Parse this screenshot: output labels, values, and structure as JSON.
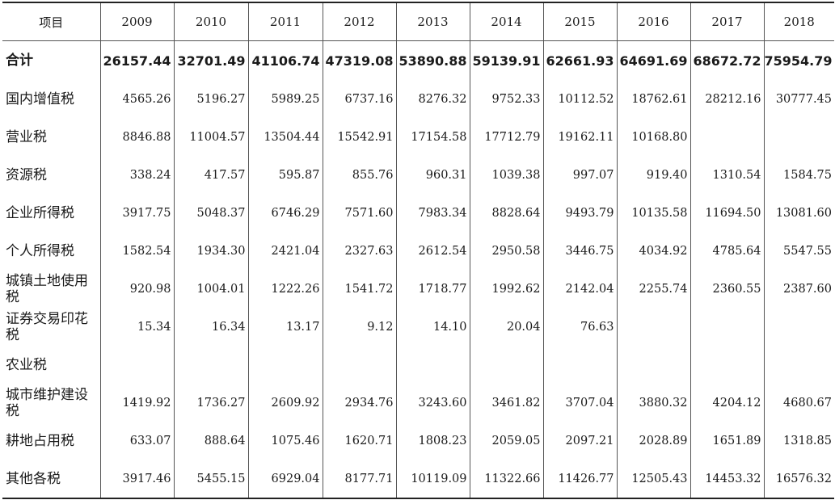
{
  "table": {
    "header": {
      "label": "项目",
      "years": [
        "2009",
        "2010",
        "2011",
        "2012",
        "2013",
        "2014",
        "2015",
        "2016",
        "2017",
        "2018"
      ]
    },
    "rows": [
      {
        "label": "合计",
        "values": [
          "26157.44",
          "32701.49",
          "41106.74",
          "47319.08",
          "53890.88",
          "59139.91",
          "62661.93",
          "64691.69",
          "68672.72",
          "75954.79"
        ]
      },
      {
        "label": "国内增值税",
        "values": [
          "4565.26",
          "5196.27",
          "5989.25",
          "6737.16",
          "8276.32",
          "9752.33",
          "10112.52",
          "18762.61",
          "28212.16",
          "30777.45"
        ]
      },
      {
        "label": "营业税",
        "values": [
          "8846.88",
          "11004.57",
          "13504.44",
          "15542.91",
          "17154.58",
          "17712.79",
          "19162.11",
          "10168.80",
          "",
          ""
        ]
      },
      {
        "label": "资源税",
        "values": [
          "338.24",
          "417.57",
          "595.87",
          "855.76",
          "960.31",
          "1039.38",
          "997.07",
          "919.40",
          "1310.54",
          "1584.75"
        ]
      },
      {
        "label": "企业所得税",
        "values": [
          "3917.75",
          "5048.37",
          "6746.29",
          "7571.60",
          "7983.34",
          "8828.64",
          "9493.79",
          "10135.58",
          "11694.50",
          "13081.60"
        ]
      },
      {
        "label": "个人所得税",
        "values": [
          "1582.54",
          "1934.30",
          "2421.04",
          "2327.63",
          "2612.54",
          "2950.58",
          "3446.75",
          "4034.92",
          "4785.64",
          "5547.55"
        ]
      },
      {
        "label": "城镇土地使用税",
        "values": [
          "920.98",
          "1004.01",
          "1222.26",
          "1541.72",
          "1718.77",
          "1992.62",
          "2142.04",
          "2255.74",
          "2360.55",
          "2387.60"
        ]
      },
      {
        "label": "证券交易印花税",
        "values": [
          "15.34",
          "16.34",
          "13.17",
          "9.12",
          "14.10",
          "20.04",
          "76.63",
          "",
          "",
          ""
        ]
      },
      {
        "label": "农业税",
        "values": [
          "",
          "",
          "",
          "",
          "",
          "",
          "",
          "",
          "",
          ""
        ]
      },
      {
        "label": "城市维护建设税",
        "values": [
          "1419.92",
          "1736.27",
          "2609.92",
          "2934.76",
          "3243.60",
          "3461.82",
          "3707.04",
          "3880.32",
          "4204.12",
          "4680.67"
        ]
      },
      {
        "label": "耕地占用税",
        "values": [
          "633.07",
          "888.64",
          "1075.46",
          "1620.71",
          "1808.23",
          "2059.05",
          "2097.21",
          "2028.89",
          "1651.89",
          "1318.85"
        ]
      },
      {
        "label": "其他各税",
        "values": [
          "3917.46",
          "5455.15",
          "6929.04",
          "8177.71",
          "10119.09",
          "11322.66",
          "11426.77",
          "12505.43",
          "14453.32",
          "16576.32"
        ]
      }
    ]
  }
}
